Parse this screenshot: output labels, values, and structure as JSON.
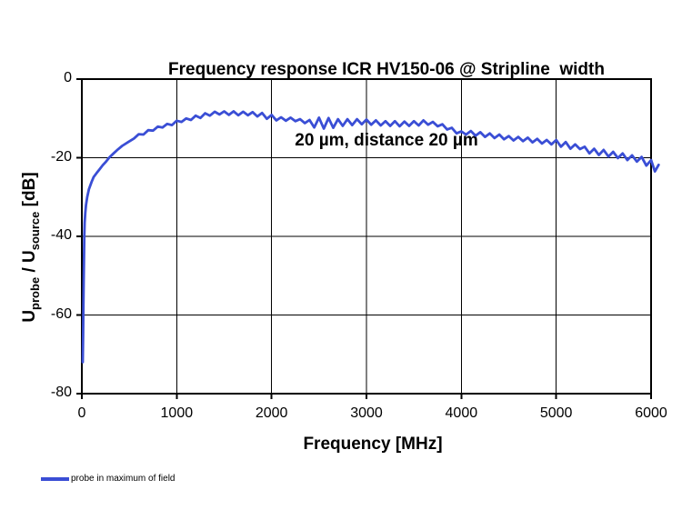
{
  "title": {
    "line1": "Frequency response ICR HV150-06 @ Stripline  width",
    "line2": "20 µm, distance 20 µm"
  },
  "axes": {
    "x": {
      "title": "Frequency [MHz]",
      "min": 0,
      "max": 6000,
      "ticks": [
        0,
        1000,
        2000,
        3000,
        4000,
        5000,
        6000
      ]
    },
    "y": {
      "title_u1": "U",
      "title_sub1": "probe",
      "title_mid": " / U",
      "title_sub2": "source",
      "title_suffix": " [dB]",
      "min": -80,
      "max": 0,
      "ticks": [
        0,
        -20,
        -40,
        -60,
        -80
      ]
    }
  },
  "legend": {
    "items": [
      {
        "label": "probe in maximum of field",
        "color": "#3a4ed5"
      }
    ]
  },
  "colors": {
    "line": "#3a4ed5",
    "grid": "#000000",
    "axis": "#000000",
    "text": "#000000",
    "background": "#ffffff"
  },
  "chart_data": {
    "type": "line",
    "title": "Frequency response ICR HV150-06 @ Stripline width 20 µm, distance 20 µm",
    "xlabel": "Frequency [MHz]",
    "ylabel": "Uprobe / Usource [dB]",
    "xlim": [
      0,
      6000
    ],
    "ylim": [
      -80,
      0
    ],
    "grid": true,
    "legend_position": "bottom-left",
    "series": [
      {
        "name": "probe in maximum of field",
        "color": "#3a4ed5",
        "points": [
          [
            10,
            -72
          ],
          [
            13,
            -65
          ],
          [
            16,
            -58
          ],
          [
            19,
            -52
          ],
          [
            23,
            -45
          ],
          [
            26,
            -40
          ],
          [
            30,
            -36.5
          ],
          [
            36,
            -34
          ],
          [
            44,
            -32
          ],
          [
            57,
            -30
          ],
          [
            75,
            -28
          ],
          [
            105,
            -26
          ],
          [
            125,
            -24.9
          ],
          [
            155,
            -23.9
          ],
          [
            185,
            -23
          ],
          [
            220,
            -21.9
          ],
          [
            255,
            -21
          ],
          [
            290,
            -19.9
          ],
          [
            330,
            -19
          ],
          [
            380,
            -17.9
          ],
          [
            425,
            -17
          ],
          [
            490,
            -16
          ],
          [
            550,
            -15.1
          ],
          [
            600,
            -14
          ],
          [
            650,
            -14.1
          ],
          [
            700,
            -13
          ],
          [
            750,
            -13.1
          ],
          [
            800,
            -12.1
          ],
          [
            850,
            -12.3
          ],
          [
            900,
            -11.4
          ],
          [
            950,
            -11.7
          ],
          [
            1000,
            -10.6
          ],
          [
            1050,
            -10.9
          ],
          [
            1100,
            -10
          ],
          [
            1150,
            -10.4
          ],
          [
            1200,
            -9.3
          ],
          [
            1250,
            -9.9
          ],
          [
            1300,
            -8.7
          ],
          [
            1350,
            -9.3
          ],
          [
            1400,
            -8.3
          ],
          [
            1450,
            -9
          ],
          [
            1500,
            -8.2
          ],
          [
            1550,
            -9.1
          ],
          [
            1600,
            -8.2
          ],
          [
            1650,
            -9.2
          ],
          [
            1700,
            -8.3
          ],
          [
            1750,
            -9.2
          ],
          [
            1800,
            -8.4
          ],
          [
            1850,
            -9.5
          ],
          [
            1900,
            -8.6
          ],
          [
            1950,
            -10.1
          ],
          [
            2000,
            -9.1
          ],
          [
            2050,
            -10.5
          ],
          [
            2100,
            -9.7
          ],
          [
            2150,
            -10.6
          ],
          [
            2200,
            -9.8
          ],
          [
            2250,
            -10.7
          ],
          [
            2300,
            -10.2
          ],
          [
            2350,
            -11.2
          ],
          [
            2400,
            -10.4
          ],
          [
            2450,
            -12.3
          ],
          [
            2500,
            -9.8
          ],
          [
            2550,
            -12.6
          ],
          [
            2600,
            -9.9
          ],
          [
            2650,
            -12.4
          ],
          [
            2700,
            -10.2
          ],
          [
            2750,
            -11.9
          ],
          [
            2800,
            -10.2
          ],
          [
            2850,
            -11.7
          ],
          [
            2900,
            -10.2
          ],
          [
            2950,
            -11.5
          ],
          [
            3000,
            -10.3
          ],
          [
            3050,
            -11.6
          ],
          [
            3100,
            -10.5
          ],
          [
            3150,
            -11.8
          ],
          [
            3200,
            -10.7
          ],
          [
            3250,
            -11.9
          ],
          [
            3300,
            -10.7
          ],
          [
            3350,
            -12
          ],
          [
            3400,
            -10.8
          ],
          [
            3450,
            -11.9
          ],
          [
            3500,
            -10.7
          ],
          [
            3550,
            -11.8
          ],
          [
            3600,
            -10.5
          ],
          [
            3650,
            -11.6
          ],
          [
            3700,
            -10.9
          ],
          [
            3750,
            -12
          ],
          [
            3800,
            -11.5
          ],
          [
            3850,
            -12.8
          ],
          [
            3900,
            -12.4
          ],
          [
            3950,
            -13.8
          ],
          [
            4000,
            -13.3
          ],
          [
            4050,
            -14.1
          ],
          [
            4100,
            -13.2
          ],
          [
            4150,
            -14.4
          ],
          [
            4200,
            -13.5
          ],
          [
            4250,
            -14.7
          ],
          [
            4300,
            -13.8
          ],
          [
            4350,
            -15
          ],
          [
            4400,
            -14.1
          ],
          [
            4450,
            -15.3
          ],
          [
            4500,
            -14.5
          ],
          [
            4550,
            -15.6
          ],
          [
            4600,
            -14.7
          ],
          [
            4650,
            -15.8
          ],
          [
            4700,
            -14.9
          ],
          [
            4750,
            -16.1
          ],
          [
            4800,
            -15.2
          ],
          [
            4850,
            -16.4
          ],
          [
            4900,
            -15.5
          ],
          [
            4950,
            -16.6
          ],
          [
            5000,
            -15.5
          ],
          [
            5050,
            -17.2
          ],
          [
            5100,
            -16
          ],
          [
            5150,
            -17.7
          ],
          [
            5200,
            -16.6
          ],
          [
            5250,
            -17.8
          ],
          [
            5300,
            -17.2
          ],
          [
            5350,
            -18.9
          ],
          [
            5400,
            -17.7
          ],
          [
            5450,
            -19.3
          ],
          [
            5500,
            -18
          ],
          [
            5550,
            -19.7
          ],
          [
            5600,
            -18.5
          ],
          [
            5650,
            -20.1
          ],
          [
            5700,
            -18.9
          ],
          [
            5750,
            -20.6
          ],
          [
            5800,
            -19.4
          ],
          [
            5850,
            -21
          ],
          [
            5900,
            -19.8
          ],
          [
            5950,
            -22
          ],
          [
            6000,
            -20.6
          ],
          [
            6040,
            -23.5
          ],
          [
            6080,
            -21.8
          ]
        ]
      }
    ]
  }
}
